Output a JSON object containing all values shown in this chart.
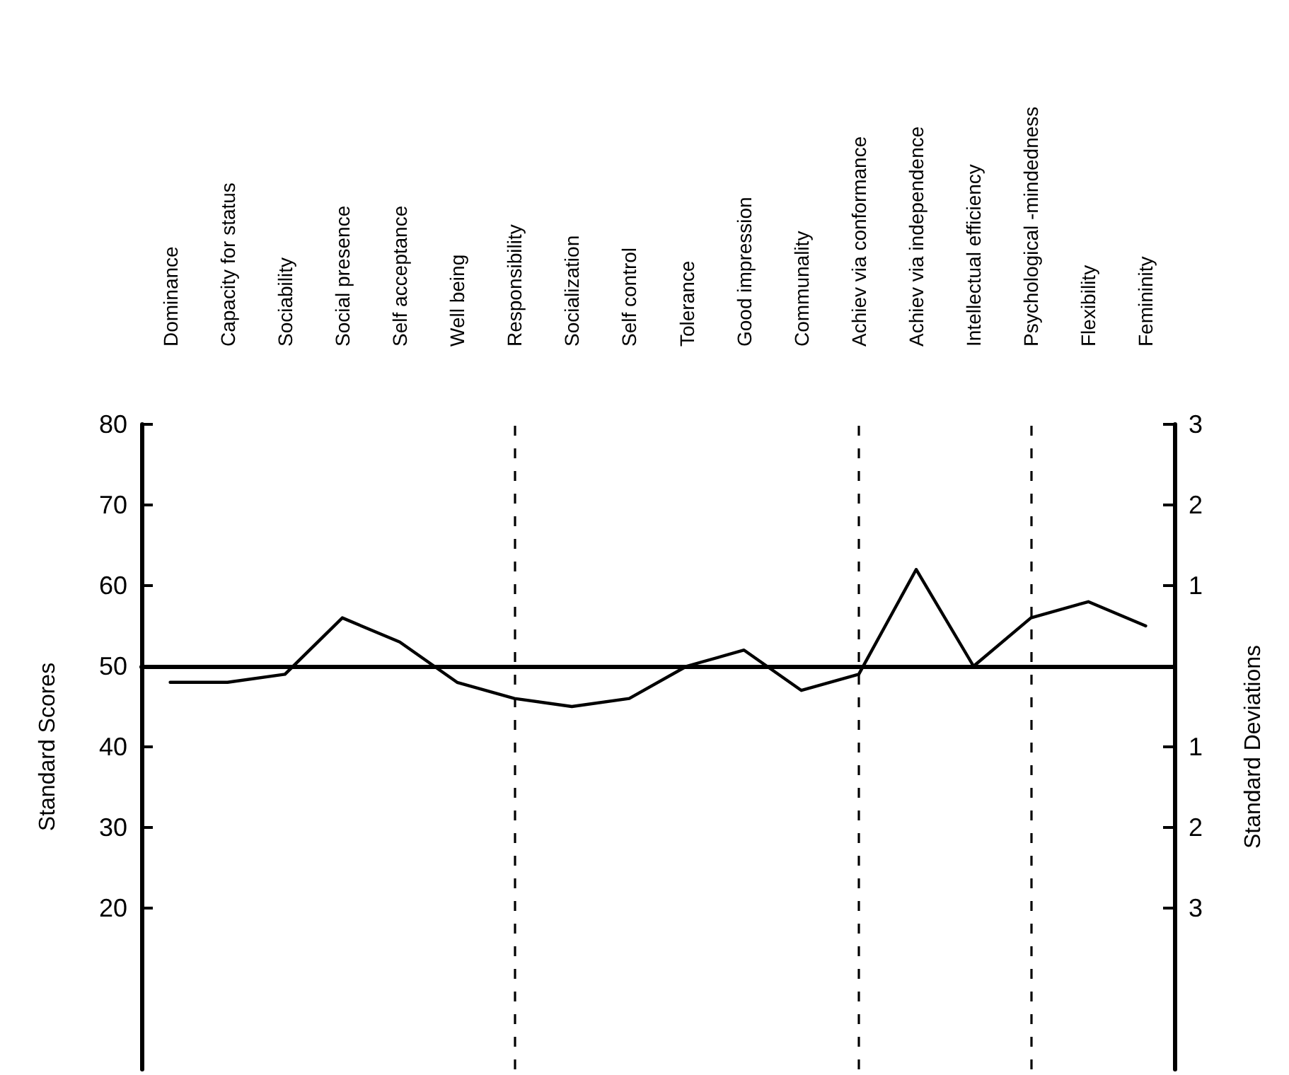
{
  "chart_data": {
    "type": "line",
    "ylabel": "Standard Scores",
    "y2label": "Standard Deviations",
    "categories": [
      "Dominance",
      "Capacity for status",
      "Sociability",
      "Social presence",
      "Self acceptance",
      "Well being",
      "Responsibility",
      "Socialization",
      "Self control",
      "Tolerance",
      "Good impression",
      "Communality",
      "Achiev via conformance",
      "Achiev via independence",
      "Intellectual efficiency",
      "Psychological -mindedness",
      "Flexibility",
      "Femininity"
    ],
    "series": [
      {
        "color": "#000000",
        "values": [
          48,
          48,
          49,
          56,
          53,
          48,
          46,
          45,
          46,
          50,
          52,
          47,
          49,
          62,
          50,
          56,
          58,
          55
        ]
      }
    ],
    "ylim": [
      0,
      80
    ],
    "yticks": [
      20,
      30,
      40,
      50,
      60,
      70,
      80
    ],
    "y2lim": [
      -5,
      3
    ],
    "y2ticks": [
      3,
      2,
      1,
      {
        "value": -1,
        "label": "1"
      },
      {
        "value": -2,
        "label": "2"
      },
      {
        "value": -3,
        "label": "3"
      }
    ],
    "ref_lines": [
      {
        "axis": "y",
        "value": 50,
        "color": "#000000",
        "line_style": "solid"
      },
      {
        "axis": "x",
        "value": "Responsibility",
        "color": "#000000",
        "line_style": "dashed"
      },
      {
        "axis": "x",
        "value": "Achiev via conformance",
        "color": "#000000",
        "line_style": "dashed"
      },
      {
        "axis": "x",
        "value": "Psychological -mindedness",
        "color": "#000000",
        "line_style": "dashed"
      }
    ],
    "grid": false,
    "marker": "none",
    "line_style": "solid"
  }
}
